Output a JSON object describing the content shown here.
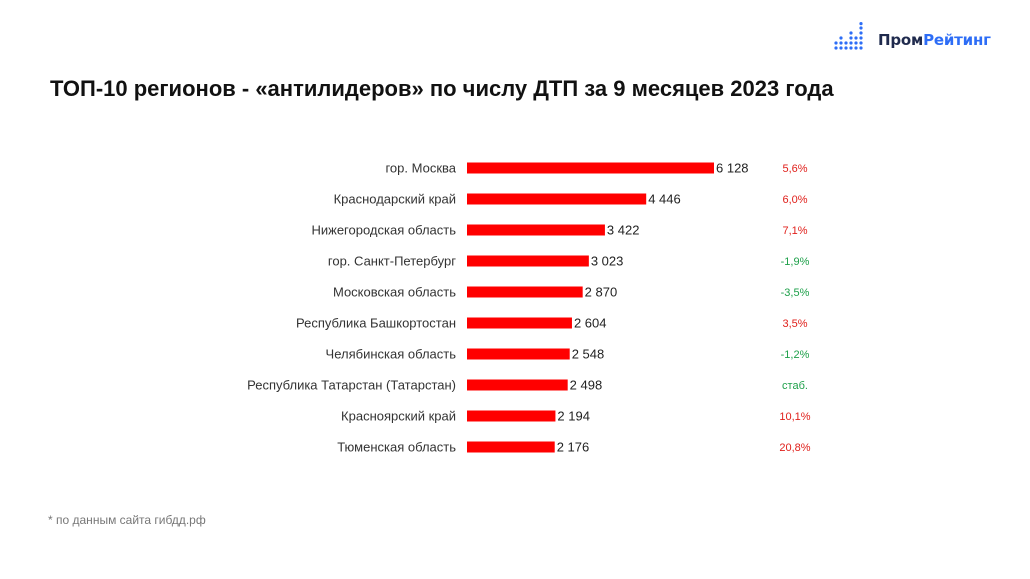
{
  "brand": {
    "name_part1": "Пром",
    "name_part2": "Рейтинг",
    "accent": "#2d6df6",
    "dark": "#1f2a4d"
  },
  "title": "ТОП-10 регионов - «антилидеров» по числу ДТП за 9 месяцев 2023 года",
  "footnote": "* по данным сайта гибдд.рф",
  "chart_data": {
    "type": "bar",
    "orientation": "horizontal",
    "categories": [
      "гор. Москва",
      "Краснодарский край",
      "Нижегородская область",
      "гор. Санкт-Петербург",
      "Московская область",
      "Республика Башкортостан",
      "Челябинская область",
      "Республика Татарстан (Татарстан)",
      "Красноярский край",
      "Тюменская область"
    ],
    "values": [
      6128,
      4446,
      3422,
      3023,
      2870,
      2604,
      2548,
      2498,
      2194,
      2176
    ],
    "value_labels": [
      "6 128",
      "4 446",
      "3 422",
      "3 023",
      "2 870",
      "2 604",
      "2 548",
      "2 498",
      "2 194",
      "2 176"
    ],
    "changes": [
      "5,6%",
      "6,0%",
      "7,1%",
      "-1,9%",
      "-3,5%",
      "3,5%",
      "-1,2%",
      "стаб.",
      "10,1%",
      "20,8%"
    ],
    "change_colors": [
      "#e0201b",
      "#e0201b",
      "#e0201b",
      "#1ea04a",
      "#1ea04a",
      "#e0201b",
      "#1ea04a",
      "#1ea04a",
      "#e0201b",
      "#e0201b"
    ],
    "bar_color": "#ff0000",
    "grid": false
  }
}
